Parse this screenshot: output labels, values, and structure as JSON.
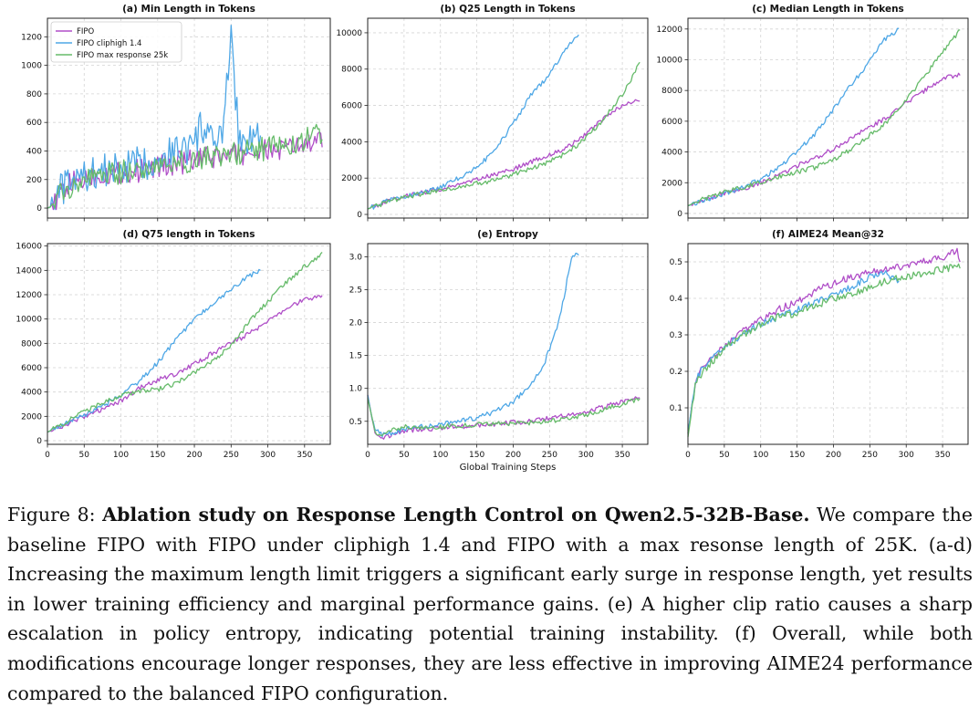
{
  "figure": {
    "shared_xlabel": "Global Training Steps",
    "legend": [
      {
        "label": "FIPO",
        "color": "#b04fc8"
      },
      {
        "label": "FIPO cliphigh 1.4",
        "color": "#4ea7e6"
      },
      {
        "label": "FIPO max response 25k",
        "color": "#66bb6a"
      }
    ]
  },
  "caption": {
    "label": "Figure 8:",
    "bold": "Ablation study on Response Length Control on Qwen2.5-32B-Base.",
    "text": "We compare the baseline FIPO with FIPO under cliphigh 1.4 and FIPO with a max resonse length of 25K. (a-d) Increasing the maximum length limit triggers a significant early surge in response length, yet results in lower training efficiency and marginal performance gains. (e) A higher clip ratio causes a sharp escalation in policy entropy, indicating potential training instability. (f) Overall, while both modifications encourage longer responses, they are less effective in improving AIME24 performance compared to the balanced FIPO configuration."
  },
  "chart_data": [
    {
      "type": "line",
      "title": "(a) Min Length in Tokens",
      "xlim": [
        0,
        385
      ],
      "ylim": [
        -70,
        1330
      ],
      "xticks": [
        0,
        50,
        100,
        150,
        200,
        250,
        300,
        350
      ],
      "show_xticklabels": false,
      "yticks": [
        0,
        200,
        400,
        600,
        800,
        1000,
        1200
      ],
      "grid": true,
      "legend": "top-left",
      "series": [
        {
          "name": "FIPO",
          "x": [
            0,
            10,
            20,
            40,
            60,
            80,
            100,
            120,
            140,
            160,
            180,
            200,
            220,
            240,
            260,
            280,
            300,
            320,
            340,
            360,
            375
          ],
          "y": [
            0,
            20,
            130,
            190,
            220,
            240,
            250,
            260,
            280,
            300,
            320,
            330,
            350,
            360,
            380,
            390,
            400,
            410,
            430,
            450,
            460
          ]
        },
        {
          "name": "FIPO cliphigh 1.4",
          "x": [
            0,
            10,
            20,
            40,
            60,
            80,
            100,
            120,
            140,
            160,
            180,
            200,
            210,
            220,
            230,
            240,
            250,
            260,
            270,
            280,
            290
          ],
          "y": [
            0,
            20,
            140,
            200,
            240,
            260,
            280,
            300,
            330,
            380,
            420,
            430,
            600,
            450,
            480,
            520,
            1280,
            500,
            480,
            520,
            470
          ]
        },
        {
          "name": "FIPO max response 25k",
          "x": [
            0,
            10,
            20,
            40,
            60,
            80,
            100,
            120,
            140,
            160,
            180,
            200,
            220,
            240,
            260,
            280,
            300,
            320,
            340,
            360,
            375
          ],
          "y": [
            0,
            20,
            120,
            180,
            210,
            230,
            250,
            270,
            290,
            310,
            320,
            340,
            350,
            370,
            390,
            400,
            420,
            440,
            470,
            500,
            520
          ]
        }
      ]
    },
    {
      "type": "line",
      "title": "(b) Q25 Length in Tokens",
      "xlim": [
        0,
        385
      ],
      "ylim": [
        -200,
        10800
      ],
      "xticks": [
        0,
        50,
        100,
        150,
        200,
        250,
        300,
        350
      ],
      "show_xticklabels": false,
      "yticks": [
        0,
        2000,
        4000,
        6000,
        8000,
        10000
      ],
      "grid": true,
      "series": [
        {
          "name": "FIPO",
          "x": [
            0,
            25,
            50,
            75,
            100,
            125,
            150,
            175,
            200,
            225,
            250,
            275,
            300,
            325,
            350,
            375
          ],
          "y": [
            300,
            700,
            1000,
            1200,
            1400,
            1600,
            1900,
            2200,
            2500,
            2900,
            3300,
            3700,
            4400,
            5300,
            6000,
            6300
          ]
        },
        {
          "name": "FIPO cliphigh 1.4",
          "x": [
            0,
            25,
            50,
            75,
            100,
            125,
            150,
            175,
            200,
            225,
            250,
            270,
            290
          ],
          "y": [
            300,
            700,
            1000,
            1200,
            1500,
            2000,
            2600,
            3500,
            5000,
            6600,
            7700,
            9000,
            10000
          ]
        },
        {
          "name": "FIPO max response 25k",
          "x": [
            0,
            25,
            50,
            75,
            100,
            125,
            150,
            175,
            200,
            225,
            250,
            275,
            300,
            325,
            350,
            375
          ],
          "y": [
            300,
            650,
            950,
            1150,
            1350,
            1500,
            1700,
            1900,
            2200,
            2500,
            2900,
            3400,
            4200,
            5300,
            6600,
            8400
          ]
        }
      ]
    },
    {
      "type": "line",
      "title": "(c) Median Length in Tokens",
      "xlim": [
        0,
        385
      ],
      "ylim": [
        -300,
        12700
      ],
      "xticks": [
        0,
        50,
        100,
        150,
        200,
        250,
        300,
        350
      ],
      "show_xticklabels": false,
      "yticks": [
        0,
        2000,
        4000,
        6000,
        8000,
        10000,
        12000
      ],
      "grid": true,
      "series": [
        {
          "name": "FIPO",
          "x": [
            0,
            25,
            50,
            75,
            100,
            125,
            150,
            175,
            200,
            225,
            250,
            275,
            300,
            325,
            350,
            375
          ],
          "y": [
            500,
            900,
            1300,
            1600,
            2000,
            2500,
            3100,
            3600,
            4200,
            4900,
            5600,
            6300,
            7200,
            8000,
            8800,
            9000
          ]
        },
        {
          "name": "FIPO cliphigh 1.4",
          "x": [
            0,
            25,
            50,
            75,
            100,
            125,
            150,
            175,
            200,
            225,
            250,
            270,
            290
          ],
          "y": [
            500,
            900,
            1300,
            1700,
            2200,
            3000,
            4000,
            5200,
            6800,
            8400,
            9900,
            11300,
            12000
          ]
        },
        {
          "name": "FIPO max response 25k",
          "x": [
            0,
            25,
            50,
            75,
            100,
            125,
            150,
            175,
            200,
            225,
            250,
            275,
            300,
            325,
            350,
            375
          ],
          "y": [
            500,
            1000,
            1400,
            1700,
            2000,
            2400,
            2700,
            3000,
            3500,
            4200,
            5100,
            6000,
            7400,
            8900,
            10500,
            12000
          ]
        }
      ]
    },
    {
      "type": "line",
      "title": "(d) Q75 length in Tokens",
      "xlim": [
        0,
        385
      ],
      "ylim": [
        -300,
        16200
      ],
      "xticks": [
        0,
        50,
        100,
        150,
        200,
        250,
        300,
        350
      ],
      "yticks": [
        0,
        2000,
        4000,
        6000,
        8000,
        10000,
        12000,
        14000,
        16000
      ],
      "grid": true,
      "series": [
        {
          "name": "FIPO",
          "x": [
            0,
            25,
            50,
            75,
            100,
            125,
            150,
            175,
            200,
            225,
            250,
            275,
            300,
            325,
            350,
            375
          ],
          "y": [
            700,
            1300,
            2000,
            2600,
            3300,
            4300,
            5000,
            5500,
            6300,
            7200,
            8000,
            8800,
            9800,
            10800,
            11600,
            11800
          ]
        },
        {
          "name": "FIPO cliphigh 1.4",
          "x": [
            0,
            25,
            50,
            75,
            100,
            125,
            150,
            175,
            200,
            225,
            250,
            270,
            290
          ],
          "y": [
            700,
            1400,
            2100,
            2800,
            3800,
            4900,
            6400,
            8300,
            10000,
            11200,
            12400,
            13400,
            14000
          ]
        },
        {
          "name": "FIPO max response 25k",
          "x": [
            0,
            25,
            50,
            75,
            100,
            125,
            150,
            175,
            200,
            225,
            250,
            275,
            300,
            325,
            350,
            375
          ],
          "y": [
            700,
            1500,
            2400,
            3100,
            3700,
            4100,
            4200,
            4700,
            5600,
            6500,
            7800,
            9800,
            11400,
            13000,
            14300,
            15400
          ]
        }
      ]
    },
    {
      "type": "line",
      "title": "(e) Entropy",
      "xlim": [
        0,
        385
      ],
      "ylim": [
        0.15,
        3.2
      ],
      "xticks": [
        0,
        50,
        100,
        150,
        200,
        250,
        300,
        350
      ],
      "xlabel": "Global Training Steps",
      "yticks": [
        0.5,
        1.0,
        1.5,
        2.0,
        2.5,
        3.0
      ],
      "grid": true,
      "series": [
        {
          "name": "FIPO",
          "x": [
            0,
            5,
            10,
            20,
            30,
            50,
            75,
            100,
            125,
            150,
            175,
            200,
            225,
            250,
            275,
            300,
            325,
            350,
            375
          ],
          "y": [
            0.9,
            0.6,
            0.35,
            0.25,
            0.28,
            0.35,
            0.38,
            0.4,
            0.42,
            0.44,
            0.46,
            0.48,
            0.5,
            0.55,
            0.6,
            0.65,
            0.72,
            0.8,
            0.88
          ]
        },
        {
          "name": "FIPO cliphigh 1.4",
          "x": [
            0,
            5,
            10,
            20,
            30,
            50,
            75,
            100,
            125,
            150,
            175,
            200,
            220,
            240,
            250,
            260,
            270,
            280,
            290
          ],
          "y": [
            0.9,
            0.6,
            0.4,
            0.3,
            0.32,
            0.38,
            0.42,
            0.45,
            0.5,
            0.55,
            0.65,
            0.8,
            1.0,
            1.3,
            1.6,
            1.9,
            2.4,
            3.0,
            3.05
          ]
        },
        {
          "name": "FIPO max response 25k",
          "x": [
            0,
            5,
            10,
            20,
            30,
            50,
            75,
            100,
            125,
            150,
            175,
            200,
            225,
            250,
            275,
            300,
            325,
            350,
            375
          ],
          "y": [
            0.85,
            0.6,
            0.35,
            0.28,
            0.35,
            0.42,
            0.4,
            0.42,
            0.43,
            0.45,
            0.46,
            0.47,
            0.48,
            0.5,
            0.55,
            0.6,
            0.68,
            0.76,
            0.85
          ]
        }
      ]
    },
    {
      "type": "line",
      "title": "(f) AIME24 Mean@32",
      "xlim": [
        0,
        385
      ],
      "ylim": [
        0.0,
        0.55
      ],
      "xticks": [
        0,
        50,
        100,
        150,
        200,
        250,
        300,
        350
      ],
      "yticks": [
        0.1,
        0.2,
        0.3,
        0.4,
        0.5
      ],
      "grid": true,
      "series": [
        {
          "name": "FIPO",
          "x": [
            0,
            10,
            20,
            30,
            40,
            50,
            60,
            75,
            100,
            125,
            150,
            175,
            200,
            225,
            250,
            275,
            300,
            325,
            350,
            370,
            375
          ],
          "y": [
            0.03,
            0.17,
            0.21,
            0.23,
            0.25,
            0.27,
            0.29,
            0.31,
            0.34,
            0.37,
            0.39,
            0.42,
            0.44,
            0.46,
            0.47,
            0.48,
            0.49,
            0.5,
            0.51,
            0.53,
            0.5
          ]
        },
        {
          "name": "FIPO cliphigh 1.4",
          "x": [
            0,
            10,
            20,
            30,
            40,
            50,
            60,
            75,
            100,
            125,
            150,
            175,
            200,
            225,
            250,
            270,
            290
          ],
          "y": [
            0.03,
            0.17,
            0.21,
            0.23,
            0.25,
            0.27,
            0.28,
            0.3,
            0.33,
            0.35,
            0.37,
            0.39,
            0.41,
            0.43,
            0.46,
            0.47,
            0.44
          ]
        },
        {
          "name": "FIPO max response 25k",
          "x": [
            0,
            10,
            20,
            30,
            40,
            50,
            60,
            75,
            100,
            125,
            150,
            175,
            200,
            225,
            250,
            275,
            300,
            325,
            350,
            375
          ],
          "y": [
            0.02,
            0.16,
            0.2,
            0.22,
            0.24,
            0.26,
            0.28,
            0.3,
            0.33,
            0.35,
            0.36,
            0.38,
            0.4,
            0.41,
            0.43,
            0.45,
            0.46,
            0.47,
            0.48,
            0.49
          ]
        }
      ]
    }
  ]
}
